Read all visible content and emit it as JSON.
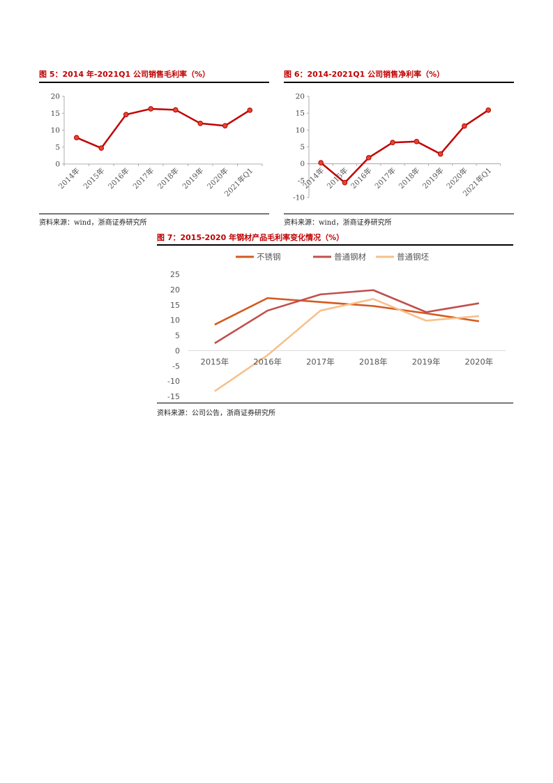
{
  "fig5": {
    "title": "图 5：2014 年-2021Q1 公司销售毛利率（%）",
    "source": "资料来源：wind，浙商证券研究所"
  },
  "fig6": {
    "title": "图 6：2014-2021Q1 公司销售净利率（%）",
    "source": "资料来源：wind，浙商证券研究所"
  },
  "fig7": {
    "title": "图 7：2015-2020 年钢材产品毛利率变化情况（%）",
    "source": "资料来源：公司公告，浙商证券研究所"
  },
  "chart_data": [
    {
      "type": "line",
      "categories": [
        "2014年",
        "2015年",
        "2016年",
        "2017年",
        "2018年",
        "2019年",
        "2020年",
        "2021年Q1"
      ],
      "series": [
        {
          "values": [
            7.8,
            4.7,
            14.6,
            16.3,
            16.0,
            12.0,
            11.3,
            15.9
          ]
        }
      ],
      "ylim": [
        0,
        20
      ],
      "yticks": [
        0,
        5,
        10,
        15,
        20
      ],
      "grid": false,
      "color": "#c00000"
    },
    {
      "type": "line",
      "categories": [
        "2014年",
        "2015年",
        "2016年",
        "2017年",
        "2018年",
        "2019年",
        "2020年",
        "2021年Q1"
      ],
      "series": [
        {
          "values": [
            0.3,
            -5.6,
            1.8,
            6.3,
            6.6,
            2.9,
            11.2,
            15.9
          ]
        }
      ],
      "ylim": [
        -10,
        20
      ],
      "yticks": [
        -10,
        -5,
        0,
        5,
        10,
        15,
        20
      ],
      "grid": false,
      "color": "#c00000"
    },
    {
      "type": "line",
      "categories": [
        "2015年",
        "2016年",
        "2017年",
        "2018年",
        "2019年",
        "2020年"
      ],
      "series": [
        {
          "name": "不锈钢",
          "values": [
            8.5,
            17.2,
            15.9,
            14.6,
            12.2,
            9.6
          ],
          "color": "#d45a1e"
        },
        {
          "name": "普通钢材",
          "values": [
            2.4,
            13.1,
            18.4,
            19.8,
            12.6,
            15.5
          ],
          "color": "#c0504d"
        },
        {
          "name": "普通钢坯",
          "values": [
            -13.3,
            -1.5,
            13.1,
            16.9,
            9.8,
            11.3
          ],
          "color": "#f7c08a"
        }
      ],
      "ylim": [
        -15,
        25
      ],
      "yticks": [
        -15,
        -10,
        -5,
        0,
        5,
        10,
        15,
        20,
        25
      ],
      "legend": "top",
      "grid": false
    }
  ]
}
